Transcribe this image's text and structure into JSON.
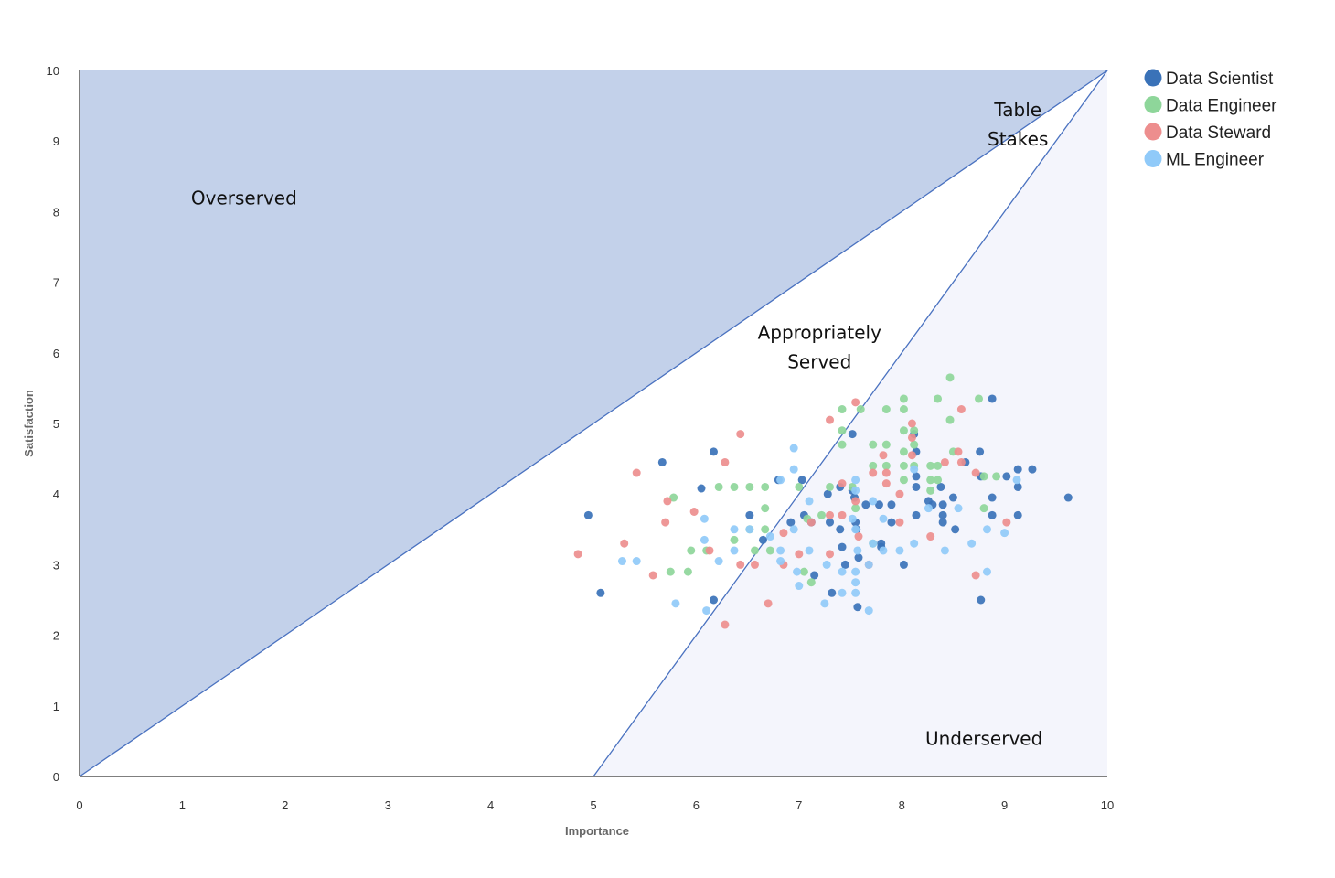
{
  "chart_data": {
    "type": "scatter",
    "title": "",
    "xlabel": "Importance",
    "ylabel": "Satisfaction",
    "xlim": [
      0,
      10
    ],
    "ylim": [
      0,
      10
    ],
    "xticks": [
      "0",
      "1",
      "2",
      "3",
      "4",
      "5",
      "6",
      "7",
      "8",
      "9",
      "10"
    ],
    "yticks": [
      "0",
      "1",
      "2",
      "3",
      "4",
      "5",
      "6",
      "7",
      "8",
      "9",
      "10"
    ],
    "grid": false,
    "legend_position": "top-right",
    "regions": [
      {
        "name": "Overserved",
        "label_lines": [
          "Overserved"
        ],
        "label_at": [
          1.6,
          8.1
        ],
        "color": "#c3d1ea"
      },
      {
        "name": "Table Stakes",
        "label_lines": [
          "Table",
          "Stakes"
        ],
        "label_at": [
          9.13,
          9.35
        ],
        "color": "#c3d1ea"
      },
      {
        "name": "Appropriately Served",
        "label_lines": [
          "Appropriately",
          "Served"
        ],
        "label_at": [
          7.2,
          6.2
        ],
        "color": "#ffffff"
      },
      {
        "name": "Underserved",
        "label_lines": [
          "Underserved"
        ],
        "label_at": [
          8.8,
          0.45
        ],
        "color": "#f4f5fc"
      }
    ],
    "boundary_lines": [
      {
        "from": [
          0,
          0
        ],
        "to": [
          10,
          10
        ]
      },
      {
        "from": [
          5,
          0
        ],
        "to": [
          10,
          10
        ]
      }
    ],
    "series": [
      {
        "name": "Data Scientist",
        "color": "#3a72b8",
        "points": [
          [
            4.95,
            3.7
          ],
          [
            5.07,
            2.6
          ],
          [
            5.67,
            4.45
          ],
          [
            6.05,
            4.08
          ],
          [
            6.17,
            4.6
          ],
          [
            6.17,
            2.5
          ],
          [
            6.52,
            3.7
          ],
          [
            6.65,
            3.35
          ],
          [
            6.8,
            4.2
          ],
          [
            6.92,
            3.6
          ],
          [
            7.03,
            4.2
          ],
          [
            7.05,
            3.7
          ],
          [
            7.12,
            3.6
          ],
          [
            7.15,
            2.85
          ],
          [
            7.28,
            4.0
          ],
          [
            7.3,
            3.6
          ],
          [
            7.32,
            2.6
          ],
          [
            7.4,
            4.1
          ],
          [
            7.4,
            3.5
          ],
          [
            7.42,
            3.25
          ],
          [
            7.45,
            3.0
          ],
          [
            7.52,
            4.85
          ],
          [
            7.52,
            4.05
          ],
          [
            7.54,
            3.95
          ],
          [
            7.55,
            3.6
          ],
          [
            7.56,
            3.5
          ],
          [
            7.58,
            3.1
          ],
          [
            7.57,
            2.4
          ],
          [
            7.65,
            3.85
          ],
          [
            7.78,
            3.85
          ],
          [
            7.8,
            3.3
          ],
          [
            7.8,
            3.25
          ],
          [
            7.9,
            3.85
          ],
          [
            7.9,
            3.6
          ],
          [
            8.02,
            3.0
          ],
          [
            8.12,
            4.85
          ],
          [
            8.14,
            4.6
          ],
          [
            8.14,
            4.25
          ],
          [
            8.14,
            4.1
          ],
          [
            8.14,
            3.7
          ],
          [
            8.26,
            3.9
          ],
          [
            8.3,
            3.85
          ],
          [
            8.38,
            4.1
          ],
          [
            8.4,
            3.85
          ],
          [
            8.4,
            3.7
          ],
          [
            8.4,
            3.6
          ],
          [
            8.5,
            3.95
          ],
          [
            8.52,
            3.5
          ],
          [
            8.62,
            4.45
          ],
          [
            8.76,
            4.6
          ],
          [
            8.77,
            4.25
          ],
          [
            8.77,
            2.5
          ],
          [
            8.88,
            5.35
          ],
          [
            8.88,
            3.7
          ],
          [
            8.88,
            3.95
          ],
          [
            9.02,
            4.25
          ],
          [
            9.13,
            4.35
          ],
          [
            9.13,
            4.1
          ],
          [
            9.13,
            3.7
          ],
          [
            9.27,
            4.35
          ],
          [
            9.62,
            3.95
          ]
        ]
      },
      {
        "name": "Data Engineer",
        "color": "#8ed69a",
        "points": [
          [
            5.78,
            3.95
          ],
          [
            5.75,
            2.9
          ],
          [
            5.92,
            2.9
          ],
          [
            5.95,
            3.2
          ],
          [
            6.1,
            3.2
          ],
          [
            6.22,
            4.1
          ],
          [
            6.37,
            4.1
          ],
          [
            6.37,
            3.35
          ],
          [
            6.52,
            4.1
          ],
          [
            6.52,
            3.5
          ],
          [
            6.57,
            3.2
          ],
          [
            6.67,
            4.1
          ],
          [
            6.67,
            3.8
          ],
          [
            6.67,
            3.5
          ],
          [
            6.72,
            3.2
          ],
          [
            7.0,
            4.1
          ],
          [
            7.05,
            2.9
          ],
          [
            7.08,
            3.65
          ],
          [
            7.12,
            2.75
          ],
          [
            7.22,
            3.7
          ],
          [
            7.3,
            4.1
          ],
          [
            7.42,
            5.2
          ],
          [
            7.42,
            4.9
          ],
          [
            7.42,
            4.7
          ],
          [
            7.52,
            4.1
          ],
          [
            7.55,
            3.8
          ],
          [
            7.6,
            5.2
          ],
          [
            7.72,
            4.7
          ],
          [
            7.72,
            4.4
          ],
          [
            7.72,
            3.3
          ],
          [
            7.85,
            5.2
          ],
          [
            7.85,
            4.7
          ],
          [
            7.85,
            4.4
          ],
          [
            8.02,
            5.35
          ],
          [
            8.02,
            5.2
          ],
          [
            8.02,
            4.9
          ],
          [
            8.02,
            4.6
          ],
          [
            8.02,
            4.4
          ],
          [
            8.02,
            4.2
          ],
          [
            8.12,
            4.9
          ],
          [
            8.12,
            4.7
          ],
          [
            8.12,
            4.4
          ],
          [
            8.28,
            4.4
          ],
          [
            8.28,
            4.2
          ],
          [
            8.28,
            4.05
          ],
          [
            8.35,
            5.35
          ],
          [
            8.35,
            4.4
          ],
          [
            8.35,
            4.2
          ],
          [
            8.47,
            5.65
          ],
          [
            8.47,
            5.05
          ],
          [
            8.5,
            4.6
          ],
          [
            8.75,
            5.35
          ],
          [
            8.8,
            4.25
          ],
          [
            8.8,
            3.8
          ],
          [
            8.92,
            4.25
          ]
        ]
      },
      {
        "name": "Data Steward",
        "color": "#ed8e8e",
        "points": [
          [
            4.85,
            3.15
          ],
          [
            5.3,
            3.3
          ],
          [
            5.42,
            4.3
          ],
          [
            5.58,
            2.85
          ],
          [
            5.7,
            3.6
          ],
          [
            5.72,
            3.9
          ],
          [
            5.98,
            3.75
          ],
          [
            6.13,
            3.2
          ],
          [
            6.28,
            2.15
          ],
          [
            6.28,
            4.45
          ],
          [
            6.43,
            4.85
          ],
          [
            6.43,
            3.0
          ],
          [
            6.57,
            3.0
          ],
          [
            6.7,
            2.45
          ],
          [
            6.85,
            3.45
          ],
          [
            6.85,
            3.0
          ],
          [
            7.0,
            3.15
          ],
          [
            7.12,
            3.6
          ],
          [
            7.3,
            5.05
          ],
          [
            7.3,
            3.7
          ],
          [
            7.3,
            3.15
          ],
          [
            7.42,
            4.15
          ],
          [
            7.42,
            3.7
          ],
          [
            7.55,
            5.3
          ],
          [
            7.55,
            3.9
          ],
          [
            7.58,
            3.4
          ],
          [
            7.68,
            3.0
          ],
          [
            7.72,
            4.3
          ],
          [
            7.82,
            4.55
          ],
          [
            7.85,
            4.15
          ],
          [
            7.85,
            4.3
          ],
          [
            7.98,
            4.0
          ],
          [
            7.98,
            3.6
          ],
          [
            8.1,
            5.0
          ],
          [
            8.1,
            4.8
          ],
          [
            8.1,
            4.55
          ],
          [
            8.28,
            3.4
          ],
          [
            8.42,
            4.45
          ],
          [
            8.55,
            4.6
          ],
          [
            8.58,
            4.45
          ],
          [
            8.58,
            5.2
          ],
          [
            8.72,
            2.85
          ],
          [
            8.72,
            4.3
          ],
          [
            9.02,
            3.6
          ]
        ]
      },
      {
        "name": "ML Engineer",
        "color": "#90caf9",
        "points": [
          [
            5.28,
            3.05
          ],
          [
            5.42,
            3.05
          ],
          [
            5.8,
            2.45
          ],
          [
            6.08,
            3.35
          ],
          [
            6.08,
            3.65
          ],
          [
            6.1,
            2.35
          ],
          [
            6.22,
            3.05
          ],
          [
            6.37,
            3.5
          ],
          [
            6.37,
            3.2
          ],
          [
            6.52,
            3.5
          ],
          [
            6.72,
            3.4
          ],
          [
            6.82,
            3.2
          ],
          [
            6.82,
            3.05
          ],
          [
            6.82,
            4.2
          ],
          [
            6.95,
            3.5
          ],
          [
            6.95,
            4.35
          ],
          [
            6.95,
            4.65
          ],
          [
            6.98,
            2.9
          ],
          [
            7.0,
            2.7
          ],
          [
            7.1,
            3.2
          ],
          [
            7.1,
            3.9
          ],
          [
            7.25,
            2.45
          ],
          [
            7.27,
            3.0
          ],
          [
            7.42,
            2.6
          ],
          [
            7.42,
            2.9
          ],
          [
            7.52,
            3.65
          ],
          [
            7.55,
            2.6
          ],
          [
            7.55,
            2.75
          ],
          [
            7.55,
            2.9
          ],
          [
            7.57,
            3.2
          ],
          [
            7.55,
            3.5
          ],
          [
            7.55,
            4.05
          ],
          [
            7.55,
            4.2
          ],
          [
            7.68,
            2.35
          ],
          [
            7.68,
            3.0
          ],
          [
            7.72,
            3.3
          ],
          [
            7.72,
            3.9
          ],
          [
            7.82,
            3.65
          ],
          [
            7.82,
            3.2
          ],
          [
            7.98,
            3.2
          ],
          [
            8.12,
            3.3
          ],
          [
            8.12,
            4.35
          ],
          [
            8.26,
            3.8
          ],
          [
            8.42,
            3.2
          ],
          [
            8.55,
            3.8
          ],
          [
            8.68,
            3.3
          ],
          [
            8.83,
            3.5
          ],
          [
            8.83,
            2.9
          ],
          [
            9.0,
            3.45
          ],
          [
            9.12,
            4.2
          ]
        ]
      }
    ]
  }
}
